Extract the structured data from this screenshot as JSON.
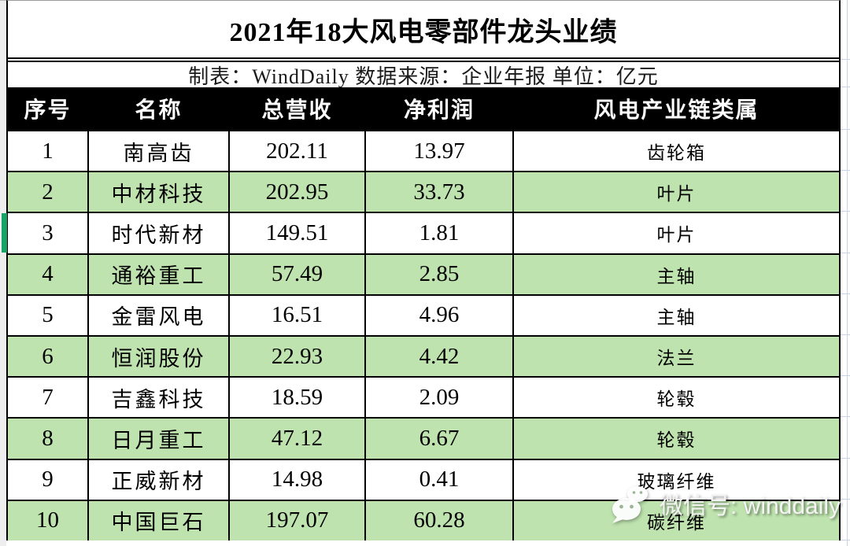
{
  "title": "2021年18大风电零部件龙头业绩",
  "subtitle": "制表：WindDaily 数据来源：企业年报 单位：亿元",
  "table": {
    "columns": [
      "序号",
      "名称",
      "总营收",
      "净利润",
      "风电产业链类属"
    ],
    "rows": [
      {
        "no": "1",
        "name": "南高齿",
        "revenue": "202.11",
        "profit": "13.97",
        "category": "齿轮箱",
        "highlight": false
      },
      {
        "no": "2",
        "name": "中材科技",
        "revenue": "202.95",
        "profit": "33.73",
        "category": "叶片",
        "highlight": true
      },
      {
        "no": "3",
        "name": "时代新材",
        "revenue": "149.51",
        "profit": "1.81",
        "category": "叶片",
        "highlight": false
      },
      {
        "no": "4",
        "name": "通裕重工",
        "revenue": "57.49",
        "profit": "2.85",
        "category": "主轴",
        "highlight": true
      },
      {
        "no": "5",
        "name": "金雷风电",
        "revenue": "16.51",
        "profit": "4.96",
        "category": "主轴",
        "highlight": false
      },
      {
        "no": "6",
        "name": "恒润股份",
        "revenue": "22.93",
        "profit": "4.42",
        "category": "法兰",
        "highlight": true
      },
      {
        "no": "7",
        "name": "吉鑫科技",
        "revenue": "18.59",
        "profit": "2.09",
        "category": "轮毂",
        "highlight": false
      },
      {
        "no": "8",
        "name": "日月重工",
        "revenue": "47.12",
        "profit": "6.67",
        "category": "轮毂",
        "highlight": true
      },
      {
        "no": "9",
        "name": "正威新材",
        "revenue": "14.98",
        "profit": "0.41",
        "category": "玻璃纤维",
        "highlight": false
      },
      {
        "no": "10",
        "name": "中国巨石",
        "revenue": "197.07",
        "profit": "60.28",
        "category": "碳纤维",
        "highlight": true
      }
    ]
  },
  "watermark": {
    "icon": "wechat-icon",
    "label": "微信号: winddaily"
  },
  "colors": {
    "highlight_row": "#BEE3AE",
    "header_bg": "#000000",
    "header_text": "#FFFFFF",
    "selection": "#17A266",
    "gridline": "#C9D3E6"
  }
}
